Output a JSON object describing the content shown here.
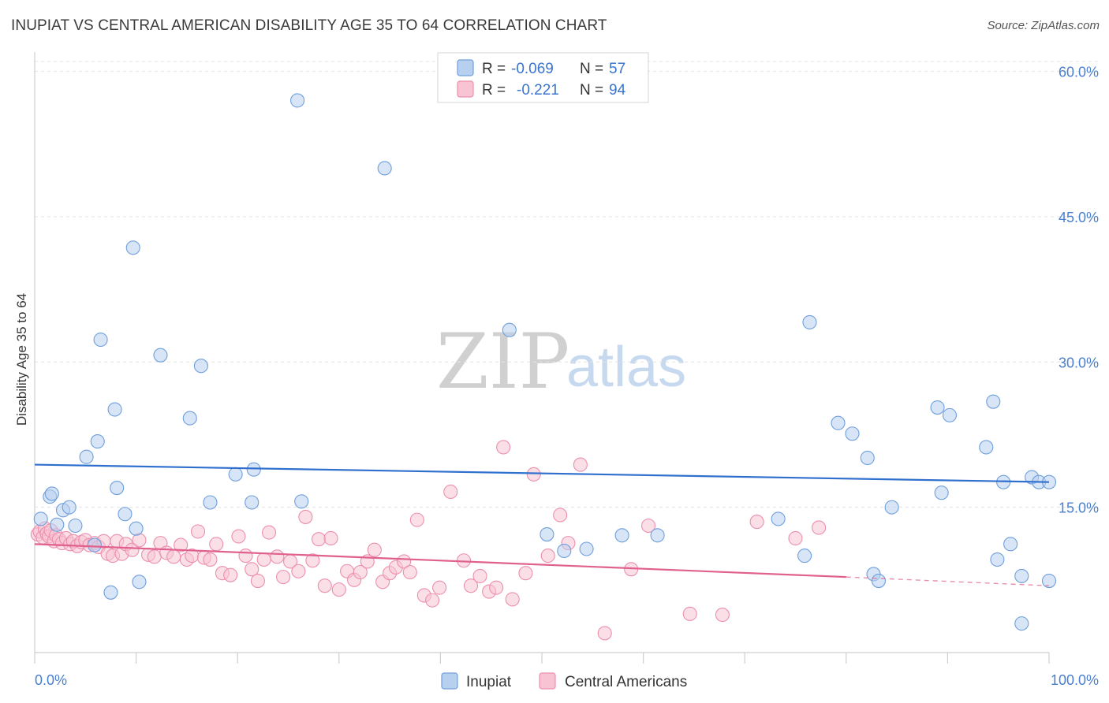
{
  "title": "INUPIAT VS CENTRAL AMERICAN DISABILITY AGE 35 TO 64 CORRELATION CHART",
  "source": "Source: ZipAtlas.com",
  "watermark": {
    "zip": "ZIP",
    "atlas": "atlas"
  },
  "colors": {
    "inupiat_fill": "#b8d0f0",
    "inupiat_stroke": "#6f9fdc",
    "inupiat_line": "#2f6fce",
    "central_fill": "#f8c4d4",
    "central_stroke": "#ec8fae",
    "central_line": "#e0608e",
    "tick_text": "#4a7fd0",
    "grid": "#e4e4e4"
  },
  "legend": {
    "inupiat": {
      "r_label": "R =",
      "r_value": "-0.069",
      "n_label": "N =",
      "n_value": "57"
    },
    "central": {
      "r_label": "R =",
      "r_value": "-0.221",
      "n_label": "N =",
      "n_value": "94"
    }
  },
  "chart_data": {
    "type": "scatter",
    "title": "INUPIAT VS CENTRAL AMERICAN DISABILITY AGE 35 TO 64 CORRELATION CHART",
    "xlabel": "",
    "ylabel": "Disability Age 35 to 64",
    "xlim": [
      0,
      100
    ],
    "ylim": [
      0,
      62
    ],
    "x_tick_labels": [
      "0.0%",
      "100.0%"
    ],
    "y_ticks": [
      15,
      30,
      45,
      60
    ],
    "y_tick_labels": [
      "15.0%",
      "30.0%",
      "45.0%",
      "60.0%"
    ],
    "grid": "horizontal dashed",
    "legend_position": "top-center",
    "series": [
      {
        "name": "Inupiat",
        "r": -0.069,
        "n": 57,
        "trend": {
          "x": [
            0,
            100
          ],
          "y": [
            19.4,
            17.6
          ]
        },
        "x": [
          0.6,
          1.5,
          1.7,
          2.2,
          2.8,
          3.4,
          4.0,
          5.1,
          5.9,
          6.2,
          6.5,
          7.5,
          7.9,
          8.1,
          8.9,
          9.7,
          10.0,
          10.3,
          12.4,
          15.3,
          16.4,
          17.3,
          19.8,
          21.4,
          21.6,
          26.3,
          25.9,
          34.5,
          46.8,
          50.5,
          52.2,
          54.4,
          57.9,
          61.4,
          73.3,
          75.9,
          76.4,
          79.2,
          80.6,
          82.1,
          84.5,
          95.5,
          89.4,
          93.8,
          94.5,
          94.9,
          96.2,
          97.3,
          98.3,
          99.0,
          100.0,
          82.7,
          83.2,
          89.0,
          90.2,
          100.0,
          97.3
        ],
        "y": [
          13.8,
          16.1,
          16.4,
          13.2,
          14.7,
          15.0,
          13.1,
          20.2,
          11.1,
          21.8,
          32.3,
          6.2,
          25.1,
          17.0,
          14.3,
          41.8,
          12.8,
          7.3,
          30.7,
          24.2,
          29.6,
          15.5,
          18.4,
          15.5,
          18.9,
          15.6,
          57.0,
          50.0,
          33.3,
          12.2,
          10.5,
          10.7,
          12.1,
          12.1,
          13.8,
          10.0,
          34.1,
          23.7,
          22.6,
          20.1,
          15.0,
          17.6,
          16.5,
          21.2,
          25.9,
          9.6,
          11.2,
          3.0,
          18.1,
          17.6,
          17.6,
          8.1,
          7.4,
          25.3,
          24.5,
          7.4,
          7.9
        ]
      },
      {
        "name": "Central Americans",
        "r": -0.221,
        "n": 94,
        "trend": {
          "x": [
            0,
            80
          ],
          "y": [
            11.2,
            7.8
          ]
        },
        "trend_dashed": {
          "x": [
            80,
            100
          ],
          "y": [
            7.8,
            6.9
          ]
        },
        "x": [
          0.3,
          0.5,
          0.8,
          1.0,
          1.2,
          1.4,
          1.6,
          1.9,
          2.1,
          2.4,
          2.7,
          3.1,
          3.5,
          3.8,
          4.2,
          4.6,
          5.0,
          5.4,
          5.9,
          6.3,
          6.8,
          7.2,
          7.7,
          8.1,
          8.6,
          9.0,
          9.6,
          10.3,
          11.2,
          11.8,
          12.4,
          13.0,
          13.7,
          14.4,
          15.0,
          15.5,
          16.1,
          16.7,
          17.3,
          17.9,
          18.5,
          19.3,
          20.1,
          20.8,
          21.4,
          22.0,
          22.6,
          23.1,
          23.9,
          24.5,
          25.2,
          26.0,
          26.7,
          27.4,
          28.0,
          28.6,
          29.2,
          30.0,
          30.8,
          31.5,
          32.1,
          32.8,
          33.5,
          34.3,
          35.0,
          35.6,
          36.4,
          37.0,
          37.7,
          38.4,
          39.2,
          39.9,
          41.0,
          42.3,
          43.0,
          43.9,
          44.8,
          45.5,
          46.2,
          47.1,
          48.4,
          49.2,
          50.6,
          51.8,
          52.6,
          53.8,
          56.2,
          58.8,
          60.5,
          64.6,
          67.8,
          71.2,
          75.0,
          77.3
        ],
        "y": [
          12.2,
          12.5,
          11.9,
          12.8,
          12.3,
          12.0,
          12.6,
          11.5,
          12.1,
          11.7,
          11.3,
          11.8,
          11.2,
          11.5,
          11.0,
          11.4,
          11.6,
          11.1,
          11.3,
          10.9,
          11.5,
          10.2,
          10.0,
          11.5,
          10.2,
          11.2,
          10.6,
          11.6,
          10.1,
          9.9,
          11.3,
          10.3,
          9.9,
          11.1,
          9.6,
          10.0,
          12.5,
          9.8,
          9.6,
          11.2,
          8.2,
          8.0,
          12.0,
          10.0,
          8.6,
          7.4,
          9.6,
          12.4,
          9.9,
          7.8,
          9.4,
          8.4,
          14.0,
          9.5,
          11.7,
          6.9,
          11.8,
          6.5,
          8.4,
          7.5,
          8.3,
          9.4,
          10.6,
          7.3,
          8.2,
          8.8,
          9.4,
          8.3,
          13.7,
          5.9,
          5.4,
          6.7,
          16.6,
          9.5,
          6.9,
          7.9,
          6.3,
          6.7,
          21.2,
          5.5,
          8.2,
          18.4,
          10.0,
          14.2,
          11.3,
          19.4,
          2.0,
          8.6,
          13.1,
          4.0,
          3.9,
          13.5,
          11.8,
          12.9
        ]
      }
    ]
  },
  "bottom_legend": {
    "inupiat": "Inupiat",
    "central": "Central Americans"
  }
}
